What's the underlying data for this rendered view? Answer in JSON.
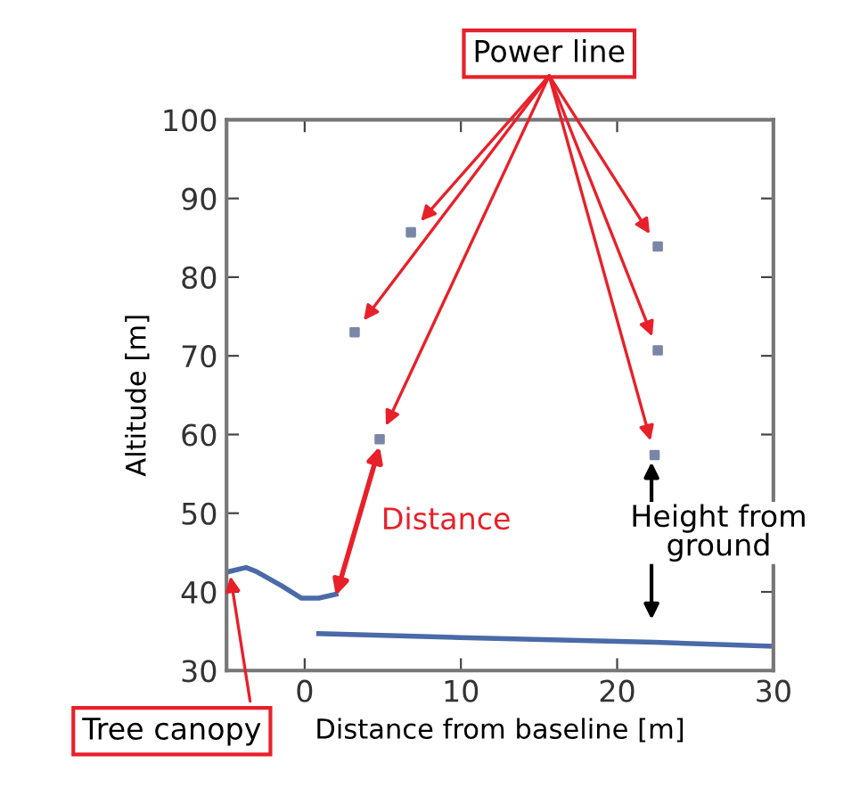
{
  "chart_data": {
    "type": "line",
    "xlabel": "Distance from baseline [m]",
    "ylabel": "Altitude [m]",
    "xlim": [
      -5,
      30
    ],
    "ylim": [
      30,
      100
    ],
    "xticks": [
      0,
      10,
      20,
      30
    ],
    "yticks": [
      30,
      40,
      50,
      60,
      70,
      80,
      90,
      100
    ],
    "grid": false,
    "legend": false,
    "series": [
      {
        "color": "#4a6aa8",
        "x": [
          -4.8,
          -3.75,
          -3.1,
          -1.5,
          -0.2,
          0.9,
          2.0
        ],
        "values": [
          42.6,
          43.1,
          42.6,
          40.8,
          39.2,
          39.2,
          39.7
        ]
      },
      {
        "color": "#4a6aa8",
        "x": [
          0.9,
          9.9,
          22.4,
          29.9
        ],
        "values": [
          34.7,
          34.2,
          33.6,
          33.1
        ]
      },
      {
        "type": "scatter",
        "color": "#7a86a8",
        "marker": "square",
        "x": [
          3.2,
          4.8,
          6.8,
          22.6,
          22.6,
          22.4
        ],
        "values": [
          73,
          59.4,
          85.7,
          83.9,
          70.7,
          57.4
        ]
      }
    ],
    "annotations": [
      "Power line",
      "Distance",
      "Height from ground",
      {
        "text": "Tree canopy",
        "x": -4.8,
        "y": 42.6
      }
    ]
  }
}
